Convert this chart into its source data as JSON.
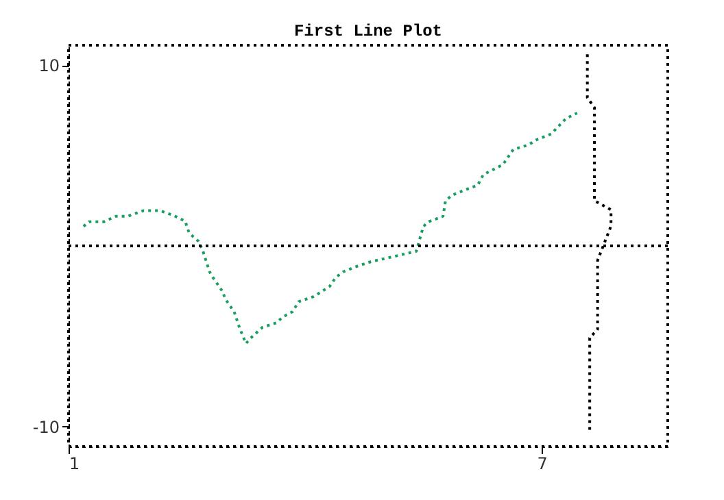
{
  "chart_data": {
    "type": "line",
    "title": "First Line Plot",
    "xlim": [
      1,
      8.6
    ],
    "xticks": [
      1,
      7
    ],
    "ylim": [
      -11.1,
      11.1
    ],
    "yticks": [
      -10,
      10
    ],
    "grid": false,
    "line_style": "dotted",
    "marker": "none",
    "ref_lines": [
      {
        "axis": "y",
        "value": 0,
        "color": "#000000",
        "line_style": "dotted"
      }
    ],
    "series": [
      {
        "color": "#1a9e60",
        "x": [
          1.19,
          1.26,
          1.45,
          1.6,
          1.75,
          1.95,
          2.16,
          2.34,
          2.48,
          2.53,
          2.65,
          2.7,
          2.79,
          2.83,
          2.95,
          2.99,
          3.1,
          3.17,
          3.25,
          3.31,
          3.46,
          3.64,
          3.71,
          3.84,
          3.92,
          4.11,
          4.31,
          4.39,
          4.48,
          4.65,
          4.83,
          5.41,
          5.5,
          5.57,
          5.75,
          5.78,
          5.86,
          6.03,
          6.19,
          6.26,
          6.51,
          6.64,
          6.83,
          6.94,
          7.12,
          7.31,
          7.45
        ],
        "values": [
          1.08,
          1.34,
          1.34,
          1.64,
          1.64,
          1.95,
          1.95,
          1.67,
          1.36,
          0.7,
          0.25,
          -0.23,
          -1.44,
          -1.74,
          -2.5,
          -2.95,
          -3.64,
          -4.55,
          -5.4,
          -5.1,
          -4.5,
          -4.25,
          -3.95,
          -3.64,
          -3.08,
          -2.8,
          -2.25,
          -1.74,
          -1.44,
          -1.14,
          -0.88,
          -0.3,
          1.08,
          1.34,
          1.64,
          2.48,
          2.8,
          3.1,
          3.36,
          3.94,
          4.5,
          5.33,
          5.58,
          5.88,
          6.19,
          7.05,
          7.35
        ]
      },
      {
        "color": "#000000",
        "x": [
          7.58,
          7.58,
          7.67,
          7.67,
          7.88,
          7.88,
          7.71,
          7.71,
          7.61,
          7.61
        ],
        "values": [
          10.6,
          8.2,
          7.65,
          2.5,
          2.0,
          1.1,
          -0.8,
          -4.6,
          -5.1,
          -10.3
        ]
      }
    ]
  }
}
